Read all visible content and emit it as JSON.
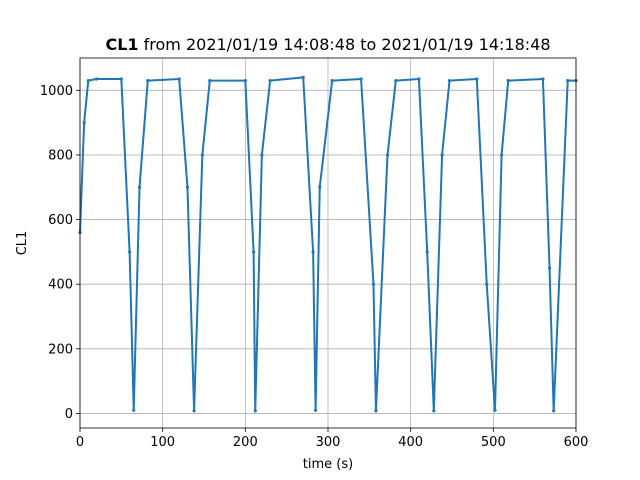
{
  "chart_data": {
    "type": "line",
    "title_bold": "CL1",
    "title_rest": " from 2021/01/19 14:08:48 to 2021/01/19 14:18:48",
    "xlabel": "time (s)",
    "ylabel": "CL1",
    "xlim": [
      0,
      600
    ],
    "ylim": [
      -45,
      1100
    ],
    "grid": true,
    "x_ticks": [
      0,
      100,
      200,
      300,
      400,
      500,
      600
    ],
    "x_tick_labels": [
      "0",
      "100",
      "200",
      "300",
      "400",
      "500",
      "600"
    ],
    "y_ticks": [
      0,
      200,
      400,
      600,
      800,
      1000
    ],
    "y_tick_labels": [
      "0",
      "200",
      "400",
      "600",
      "800",
      "1000"
    ],
    "line_color": "#1f77b4",
    "series": [
      {
        "x": [
          0,
          5,
          10,
          20,
          50,
          60,
          65,
          72,
          82,
          120,
          130,
          138,
          148,
          157,
          200,
          210,
          212,
          220,
          230,
          270,
          282,
          285,
          290,
          305,
          340,
          355,
          358,
          372,
          382,
          410,
          420,
          428,
          438,
          447,
          480,
          492,
          502,
          510,
          518,
          560,
          568,
          573,
          590,
          600
        ],
        "y": [
          560,
          900,
          1030,
          1035,
          1035,
          500,
          10,
          700,
          1030,
          1035,
          700,
          8,
          800,
          1030,
          1030,
          500,
          8,
          800,
          1030,
          1040,
          500,
          10,
          700,
          1030,
          1035,
          400,
          8,
          800,
          1030,
          1035,
          500,
          8,
          800,
          1030,
          1035,
          400,
          10,
          800,
          1030,
          1035,
          450,
          8,
          1030,
          1030
        ]
      }
    ]
  }
}
